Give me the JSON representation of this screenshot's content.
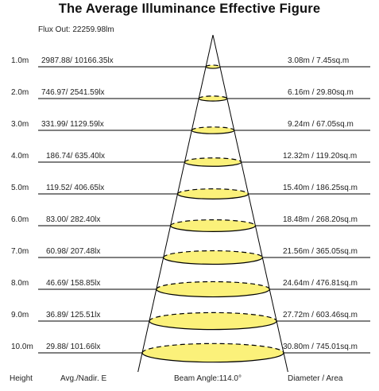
{
  "title": "The Average Illuminance Effective Figure",
  "flux_out": "Flux Out: 22259.98lm",
  "rows": [
    {
      "height": "1.0m",
      "illuminance": "2987.88/ 10166.35lx",
      "diameter_area": "3.08m / 7.45sq.m"
    },
    {
      "height": "2.0m",
      "illuminance": "746.97/ 2541.59lx",
      "diameter_area": "6.16m / 29.80sq.m"
    },
    {
      "height": "3.0m",
      "illuminance": "331.99/ 1129.59lx",
      "diameter_area": "9.24m / 67.05sq.m"
    },
    {
      "height": "4.0m",
      "illuminance": "186.74/ 635.40lx",
      "diameter_area": "12.32m / 119.20sq.m"
    },
    {
      "height": "5.0m",
      "illuminance": "119.52/ 406.65lx",
      "diameter_area": "15.40m / 186.25sq.m"
    },
    {
      "height": "6.0m",
      "illuminance": "83.00/ 282.40lx",
      "diameter_area": "18.48m / 268.20sq.m"
    },
    {
      "height": "7.0m",
      "illuminance": "60.98/ 207.48lx",
      "diameter_area": "21.56m / 365.05sq.m"
    },
    {
      "height": "8.0m",
      "illuminance": "46.69/ 158.85lx",
      "diameter_area": "24.64m / 476.81sq.m"
    },
    {
      "height": "9.0m",
      "illuminance": "36.89/ 125.51lx",
      "diameter_area": "27.72m / 603.46sq.m"
    },
    {
      "height": "10.0m",
      "illuminance": "29.88/ 101.66lx",
      "diameter_area": "30.80m / 745.01sq.m"
    }
  ],
  "footer": {
    "height": "Height",
    "illuminance": "Avg./Nadir. E",
    "beam_angle": "Beam Angle:114.0°",
    "diameter_area": "Diameter / Area"
  },
  "colors": {
    "spot_fill": "#fbf17a",
    "line": "#000000"
  }
}
